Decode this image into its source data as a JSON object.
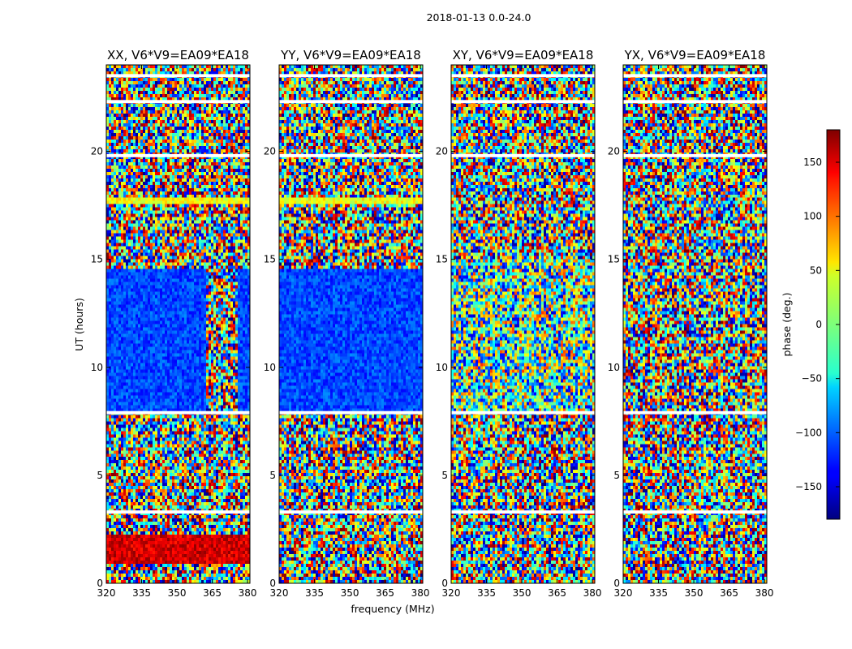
{
  "figure": {
    "suptitle": "2018-01-13 0.0-24.0",
    "ylabel": "UT (hours)",
    "xlabel": "frequency (MHz)"
  },
  "chart_data": {
    "type": "heatmap",
    "xlim": [
      320,
      381
    ],
    "ylim": [
      0,
      24
    ],
    "x_ticks": [
      320,
      335,
      350,
      365,
      380
    ],
    "y_ticks": [
      0,
      5,
      10,
      15,
      20
    ],
    "panels": [
      {
        "title": "XX, V6*V9=EA09*EA18",
        "key": "xx"
      },
      {
        "title": "YY, V6*V9=EA09*EA18",
        "key": "yy"
      },
      {
        "title": "XY, V6*V9=EA09*EA18",
        "key": "xy"
      },
      {
        "title": "YX, V6*V9=EA09*EA18",
        "key": "yx"
      }
    ],
    "colorbar": {
      "label": "phase (deg.)",
      "range": [
        -180,
        180
      ],
      "ticks": [
        150,
        100,
        50,
        0,
        -50,
        -100,
        -150
      ],
      "colormap": "jet"
    },
    "flagged_hours": [
      3.3,
      7.9,
      19.8,
      22.3,
      23.5
    ],
    "regions": [
      {
        "panel": "xx",
        "from": 8.0,
        "to": 14.6,
        "phase": -110,
        "note": "coherent band"
      },
      {
        "panel": "xx",
        "from": 0.9,
        "to": 2.2,
        "phase": 150
      },
      {
        "panel": "xx",
        "from": 17.6,
        "to": 17.9,
        "phase": 40
      },
      {
        "panel": "yy",
        "from": 8.0,
        "to": 14.6,
        "phase": -110
      },
      {
        "panel": "yy",
        "from": 17.6,
        "to": 17.9,
        "phase": 40
      }
    ]
  }
}
